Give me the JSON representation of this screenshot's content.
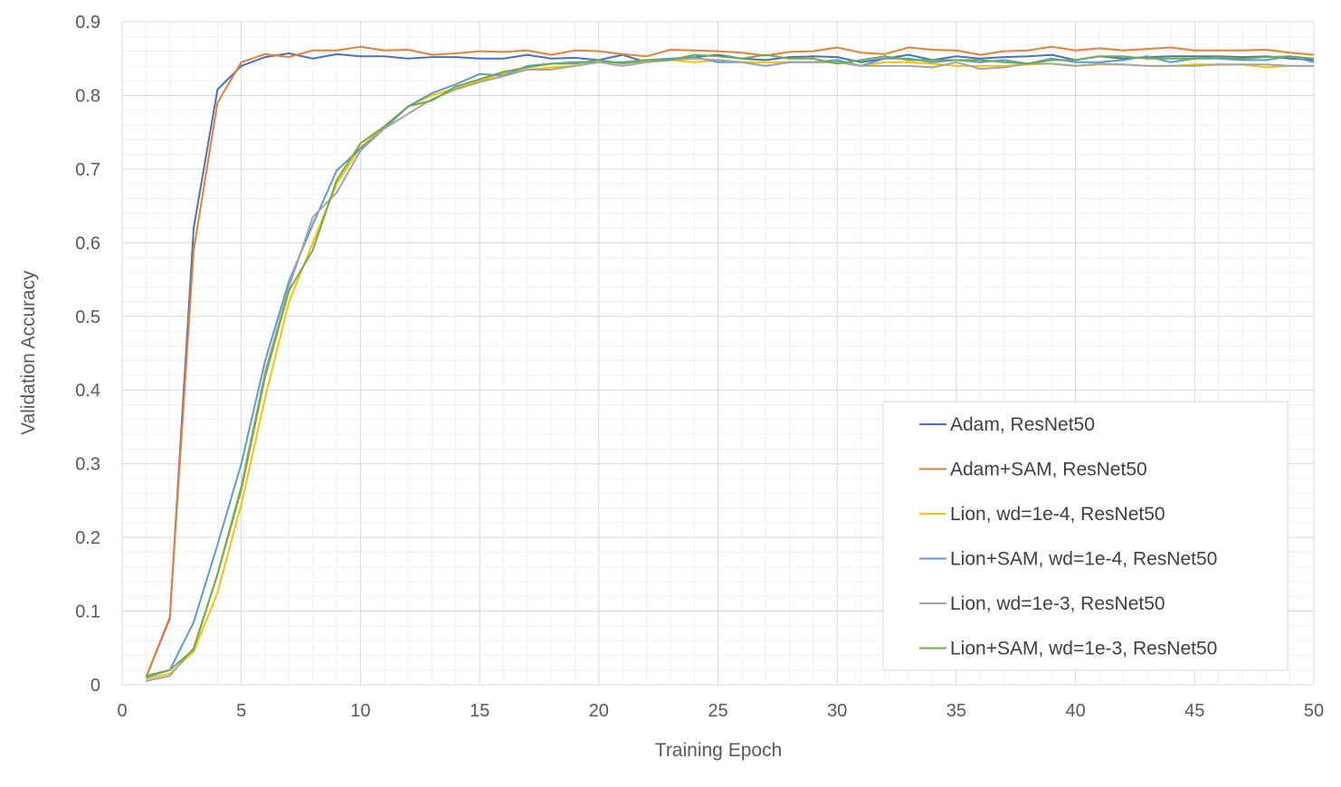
{
  "chart_data": {
    "type": "line",
    "title": "",
    "xlabel": "Training Epoch",
    "ylabel": "Validation Accuracy",
    "xlim": [
      0,
      50
    ],
    "ylim": [
      0,
      0.9
    ],
    "xticks": [
      0,
      5,
      10,
      15,
      20,
      25,
      30,
      35,
      40,
      45,
      50
    ],
    "yticks": [
      0,
      0.1,
      0.2,
      0.3,
      0.4,
      0.5,
      0.6,
      0.7,
      0.8,
      0.9
    ],
    "ytick_labels": [
      "0",
      "0.1",
      "0.2",
      "0.3",
      "0.4",
      "0.5",
      "0.6",
      "0.7",
      "0.8",
      "0.9"
    ],
    "grid": true,
    "minor_grid": true,
    "legend_position": "bottom-right",
    "x": [
      1,
      2,
      3,
      4,
      5,
      6,
      7,
      8,
      9,
      10,
      11,
      12,
      13,
      14,
      15,
      16,
      17,
      18,
      19,
      20,
      21,
      22,
      23,
      24,
      25,
      26,
      27,
      28,
      29,
      30,
      31,
      32,
      33,
      34,
      35,
      36,
      37,
      38,
      39,
      40,
      41,
      42,
      43,
      44,
      45,
      46,
      47,
      48,
      49,
      50
    ],
    "series": [
      {
        "name": "Adam, ResNet50",
        "color": "#4472C4",
        "values": [
          0.01,
          0.09,
          0.62,
          0.808,
          0.84,
          0.852,
          0.857,
          0.85,
          0.856,
          0.853,
          0.853,
          0.85,
          0.852,
          0.852,
          0.85,
          0.85,
          0.855,
          0.85,
          0.851,
          0.848,
          0.855,
          0.845,
          0.848,
          0.852,
          0.855,
          0.85,
          0.848,
          0.852,
          0.853,
          0.852,
          0.845,
          0.85,
          0.855,
          0.848,
          0.853,
          0.85,
          0.852,
          0.853,
          0.855,
          0.848,
          0.853,
          0.85,
          0.852,
          0.853,
          0.853,
          0.853,
          0.852,
          0.853,
          0.85,
          0.848
        ]
      },
      {
        "name": "Adam+SAM, ResNet50",
        "color": "#ED7D31",
        "values": [
          0.01,
          0.092,
          0.59,
          0.79,
          0.845,
          0.856,
          0.852,
          0.861,
          0.861,
          0.866,
          0.861,
          0.862,
          0.855,
          0.857,
          0.86,
          0.859,
          0.861,
          0.855,
          0.861,
          0.86,
          0.856,
          0.853,
          0.862,
          0.861,
          0.86,
          0.858,
          0.854,
          0.859,
          0.86,
          0.865,
          0.858,
          0.856,
          0.865,
          0.862,
          0.861,
          0.855,
          0.86,
          0.861,
          0.866,
          0.861,
          0.864,
          0.861,
          0.863,
          0.865,
          0.861,
          0.861,
          0.861,
          0.862,
          0.858,
          0.855
        ]
      },
      {
        "name": "Lion, wd=1e-4, ResNet50",
        "color": "#FFC000",
        "values": [
          0.008,
          0.015,
          0.045,
          0.125,
          0.245,
          0.39,
          0.52,
          0.6,
          0.68,
          0.73,
          0.757,
          0.785,
          0.8,
          0.81,
          0.82,
          0.83,
          0.835,
          0.838,
          0.84,
          0.845,
          0.845,
          0.845,
          0.848,
          0.845,
          0.848,
          0.845,
          0.845,
          0.845,
          0.845,
          0.845,
          0.84,
          0.845,
          0.845,
          0.843,
          0.84,
          0.84,
          0.84,
          0.842,
          0.843,
          0.84,
          0.842,
          0.842,
          0.84,
          0.84,
          0.842,
          0.842,
          0.842,
          0.838,
          0.84,
          0.84
        ]
      },
      {
        "name": "Lion+SAM, wd=1e-4, ResNet50",
        "color": "#5B9BD5",
        "values": [
          0.01,
          0.02,
          0.085,
          0.19,
          0.3,
          0.44,
          0.548,
          0.625,
          0.698,
          0.728,
          0.755,
          0.785,
          0.803,
          0.815,
          0.829,
          0.827,
          0.84,
          0.843,
          0.845,
          0.845,
          0.845,
          0.848,
          0.85,
          0.852,
          0.845,
          0.845,
          0.84,
          0.845,
          0.845,
          0.848,
          0.84,
          0.85,
          0.85,
          0.845,
          0.848,
          0.845,
          0.848,
          0.843,
          0.85,
          0.845,
          0.845,
          0.848,
          0.853,
          0.845,
          0.85,
          0.85,
          0.848,
          0.848,
          0.853,
          0.845
        ]
      },
      {
        "name": "Lion, wd=1e-3, ResNet50",
        "color": "#A5A5A5",
        "values": [
          0.005,
          0.012,
          0.05,
          0.15,
          0.27,
          0.425,
          0.54,
          0.635,
          0.668,
          0.725,
          0.755,
          0.775,
          0.795,
          0.808,
          0.818,
          0.826,
          0.835,
          0.835,
          0.84,
          0.845,
          0.84,
          0.845,
          0.848,
          0.85,
          0.848,
          0.845,
          0.84,
          0.845,
          0.845,
          0.845,
          0.84,
          0.84,
          0.84,
          0.838,
          0.845,
          0.836,
          0.838,
          0.843,
          0.843,
          0.84,
          0.843,
          0.842,
          0.84,
          0.84,
          0.84,
          0.842,
          0.842,
          0.842,
          0.84,
          0.84
        ]
      },
      {
        "name": "Lion+SAM, wd=1e-3, ResNet50",
        "color": "#70AD47",
        "values": [
          0.012,
          0.02,
          0.048,
          0.15,
          0.265,
          0.418,
          0.535,
          0.59,
          0.685,
          0.735,
          0.758,
          0.785,
          0.793,
          0.812,
          0.822,
          0.832,
          0.838,
          0.843,
          0.843,
          0.848,
          0.843,
          0.848,
          0.848,
          0.855,
          0.853,
          0.85,
          0.855,
          0.85,
          0.85,
          0.843,
          0.848,
          0.853,
          0.848,
          0.848,
          0.848,
          0.848,
          0.845,
          0.843,
          0.848,
          0.848,
          0.853,
          0.853,
          0.85,
          0.85,
          0.85,
          0.852,
          0.85,
          0.852,
          0.853,
          0.85
        ]
      }
    ]
  }
}
